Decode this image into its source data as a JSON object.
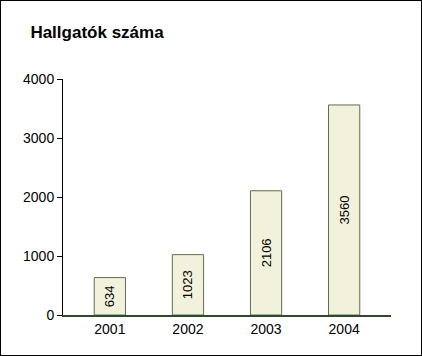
{
  "chart_data": {
    "type": "bar",
    "title": "Hallgatók száma",
    "categories": [
      "2001",
      "2002",
      "2003",
      "2004"
    ],
    "values": [
      634,
      1023,
      2106,
      3560
    ],
    "color": "#f2f2dc",
    "ylim": [
      0,
      4000
    ],
    "yticks": [
      0,
      1000,
      2000,
      3000,
      4000
    ],
    "grid": false,
    "data_labels": true
  }
}
